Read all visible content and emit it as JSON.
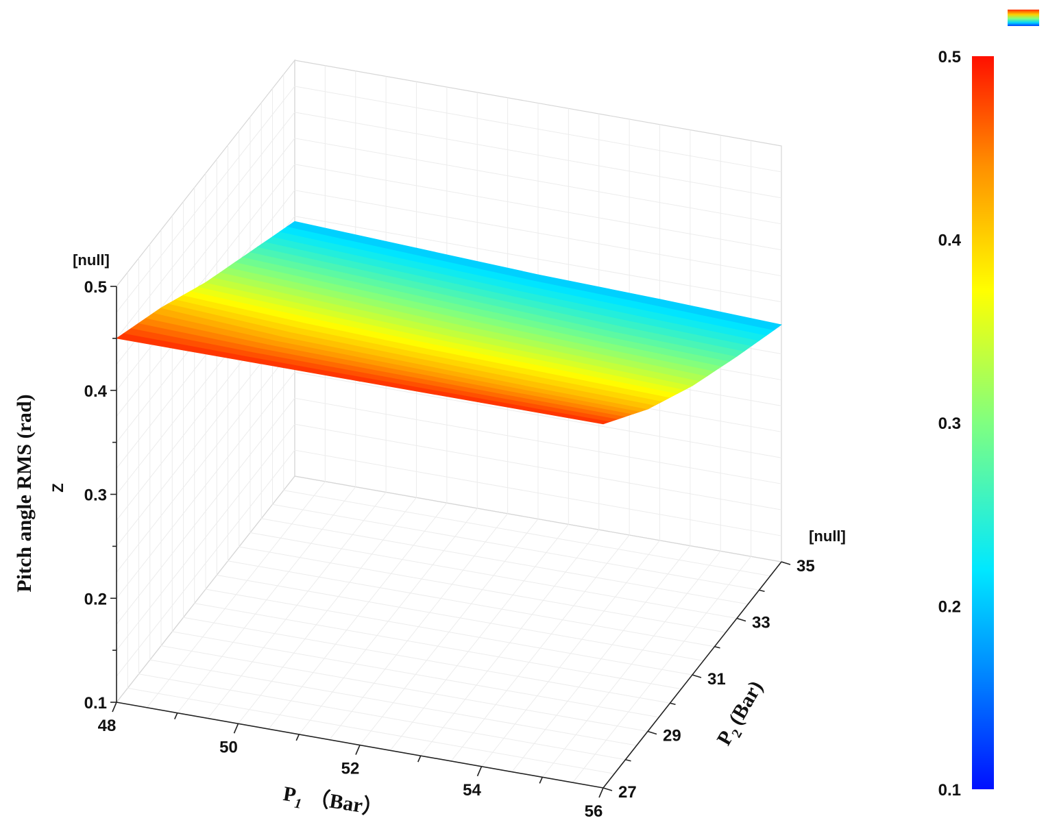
{
  "chart_data": {
    "type": "surface",
    "x": {
      "label_main": "P",
      "label_sub": "1",
      "label_unit": "（Bar）",
      "ticks": [
        48,
        50,
        52,
        54,
        56
      ],
      "range": [
        48,
        56
      ]
    },
    "y": {
      "label_main": "P",
      "label_sub": "2",
      "label_unit": "(Bar)",
      "ticks": [
        27,
        29,
        31,
        33,
        35
      ],
      "range": [
        27,
        35
      ],
      "units_label": "[null]"
    },
    "z": {
      "label": "Pitch angle RMS (rad)",
      "letter": "Z",
      "units_label": "[null]",
      "ticks": [
        0.1,
        0.2,
        0.3,
        0.4,
        0.5
      ],
      "range": [
        0.1,
        0.5
      ]
    },
    "colorbar": {
      "ticks": [
        0.1,
        0.2,
        0.3,
        0.4,
        0.5
      ],
      "range": [
        0.1,
        0.5
      ],
      "colors": [
        "#0000ff",
        "#0080ff",
        "#00ffff",
        "#80ff80",
        "#ffff00",
        "#ff8000",
        "#ff0000"
      ]
    },
    "surface": {
      "p1": [
        48,
        50,
        52,
        54,
        56
      ],
      "p2": [
        27,
        29,
        31,
        33,
        35
      ],
      "z_rows": [
        [
          0.45,
          0.45,
          0.45,
          0.45,
          0.45
        ],
        [
          0.425,
          0.418,
          0.415,
          0.412,
          0.41
        ],
        [
          0.395,
          0.39,
          0.385,
          0.382,
          0.378
        ],
        [
          0.37,
          0.365,
          0.36,
          0.355,
          0.352
        ],
        [
          0.345,
          0.34,
          0.335,
          0.332,
          0.328
        ]
      ]
    },
    "grid": true
  }
}
